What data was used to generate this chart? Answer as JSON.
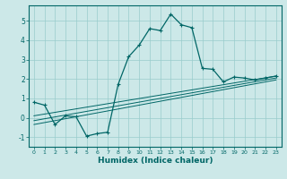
{
  "xlabel": "Humidex (Indice chaleur)",
  "bg_color": "#cce8e8",
  "grid_color": "#99cccc",
  "line_color": "#006666",
  "xlim": [
    -0.5,
    23.5
  ],
  "ylim": [
    -1.5,
    5.8
  ],
  "yticks": [
    -1,
    0,
    1,
    2,
    3,
    4,
    5
  ],
  "xticks": [
    0,
    1,
    2,
    3,
    4,
    5,
    6,
    7,
    8,
    9,
    10,
    11,
    12,
    13,
    14,
    15,
    16,
    17,
    18,
    19,
    20,
    21,
    22,
    23
  ],
  "trend1_x": [
    0,
    23
  ],
  "trend1_y": [
    -0.15,
    2.05
  ],
  "trend2_x": [
    0,
    23
  ],
  "trend2_y": [
    0.1,
    2.15
  ],
  "trend3_x": [
    0,
    23
  ],
  "trend3_y": [
    -0.35,
    1.95
  ],
  "main_x": [
    0,
    1,
    2,
    3,
    4,
    5,
    6,
    7,
    8,
    9,
    10,
    11,
    12,
    13,
    14,
    15,
    16,
    17,
    18,
    19,
    20,
    21,
    22,
    23
  ],
  "main_y": [
    0.8,
    0.65,
    -0.35,
    0.1,
    0.05,
    -0.95,
    -0.82,
    -0.75,
    1.72,
    3.15,
    3.75,
    4.6,
    4.5,
    5.35,
    4.8,
    4.65,
    2.55,
    2.5,
    1.85,
    2.1,
    2.05,
    1.95,
    2.05,
    2.15
  ]
}
